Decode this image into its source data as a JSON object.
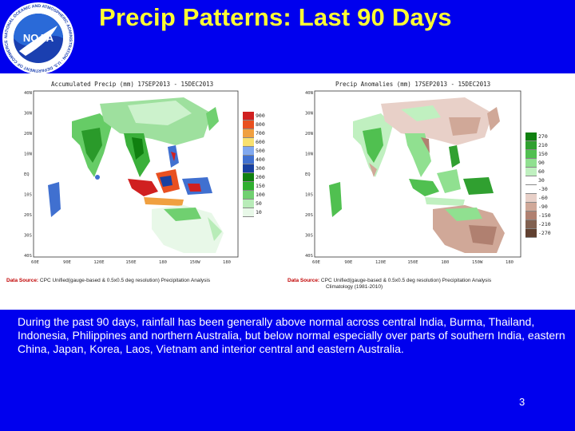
{
  "slide": {
    "title": "Precip Patterns: Last 90 Days",
    "body": "During the past 90 days, rainfall has been generally above normal across central India, Burma, Thailand, Indonesia, Philippines and northern Australia, but below normal especially over parts of  southern India, eastern China, Japan, Korea, Laos, Vietnam and interior central and eastern Australia.",
    "page_number": "3"
  },
  "logo": {
    "text": "NOAA",
    "ring_text": "NATIONAL OCEANIC AND ATMOSPHERIC ADMINISTRATION · U.S. DEPARTMENT OF COMMERCE"
  },
  "maps": {
    "left": {
      "title": "Accumulated Precip (mm) 17SEP2013 - 15DEC2013",
      "source_label": "Data Source:",
      "source_text": "CPC Unified(gauge-based & 0.5x0.5 deg resolution) Precipitation Analysis",
      "legend": [
        "900",
        "800",
        "700",
        "600",
        "500",
        "400",
        "300",
        "200",
        "150",
        "100",
        "50",
        "10"
      ],
      "legend_colors": [
        "#d02020",
        "#e85020",
        "#f0a040",
        "#f8e070",
        "#80a8f0",
        "#4070d0",
        "#1840a0",
        "#108010",
        "#30b030",
        "#70d070",
        "#b8ecb8",
        "#e8f8e8"
      ]
    },
    "right": {
      "title": "Precip Anomalies (mm) 17SEP2013 - 15DEC2013",
      "source_label": "Data Source:",
      "source_text": "CPC Unified(gauge-based & 0.5x0.5 deg resolution) Precipitation Analysis",
      "source_text2": "Climatology (1981-2010)",
      "legend": [
        "270",
        "210",
        "150",
        "90",
        "60",
        "30",
        "-30",
        "-60",
        "-90",
        "-150",
        "-210",
        "-270"
      ],
      "legend_colors": [
        "#108010",
        "#30a030",
        "#50c050",
        "#90e090",
        "#c0f0c0",
        "#ffffff",
        "#ffffff",
        "#e8d0c8",
        "#d0a898",
        "#b08070",
        "#806050",
        "#604030"
      ]
    },
    "lat_ticks": [
      "40N",
      "30N",
      "20N",
      "10N",
      "EQ",
      "10S",
      "20S",
      "30S",
      "40S"
    ],
    "lon_ticks": [
      "60E",
      "90E",
      "120E",
      "150E",
      "180",
      "150W",
      "180"
    ]
  }
}
